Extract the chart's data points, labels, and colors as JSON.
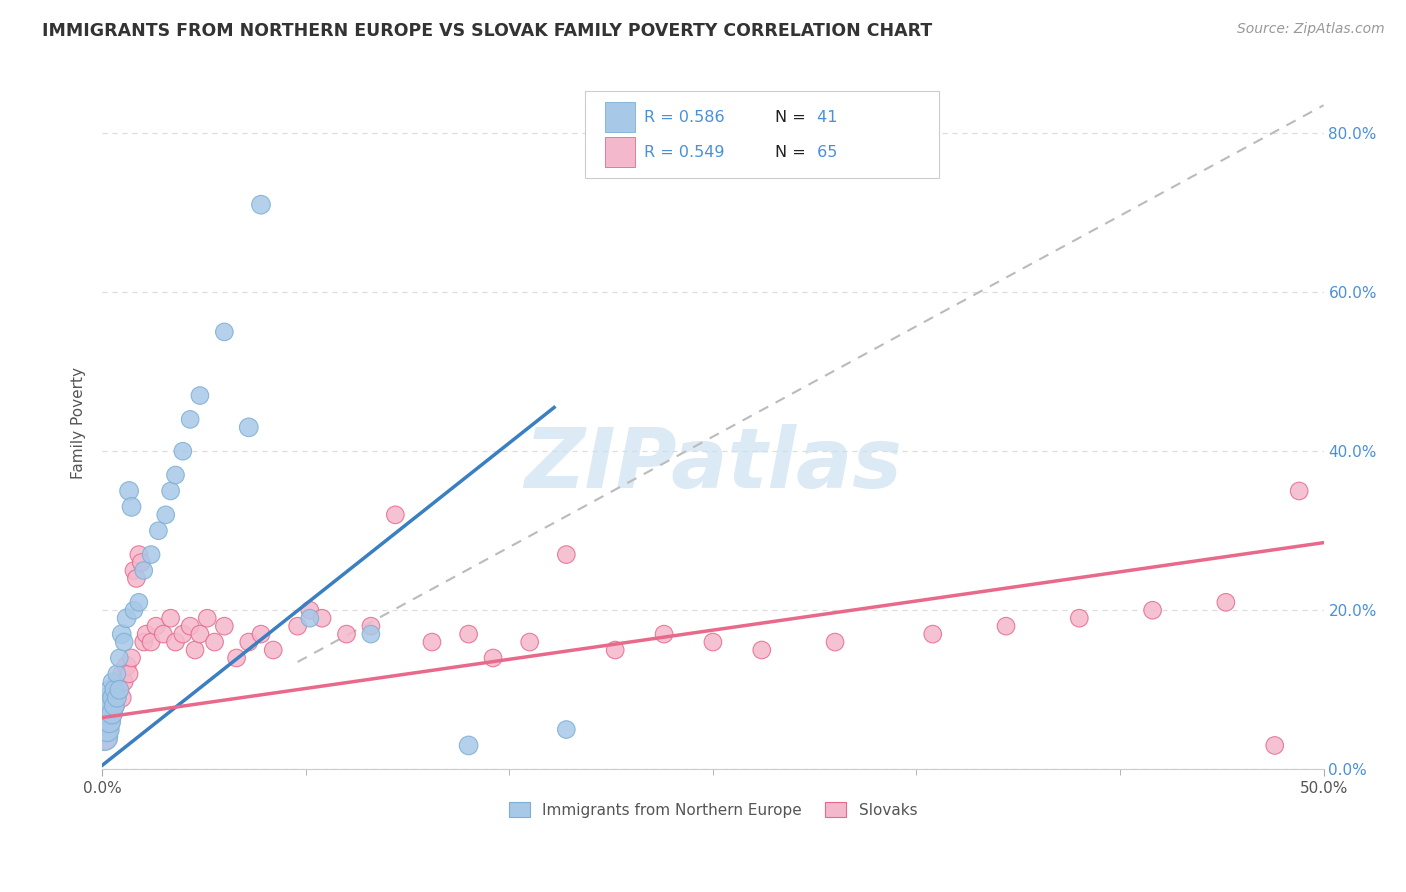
{
  "title": "IMMIGRANTS FROM NORTHERN EUROPE VS SLOVAK FAMILY POVERTY CORRELATION CHART",
  "source": "Source: ZipAtlas.com",
  "ylabel": "Family Poverty",
  "xlim": [
    0.0,
    0.5
  ],
  "ylim": [
    0.0,
    0.87
  ],
  "yticks": [
    0.0,
    0.2,
    0.4,
    0.6,
    0.8
  ],
  "ytick_labels_right": [
    "0.0%",
    "20.0%",
    "40.0%",
    "60.0%",
    "80.0%"
  ],
  "xtick_minor": [
    0.0,
    0.0833,
    0.1667,
    0.25,
    0.3333,
    0.4167,
    0.5
  ],
  "series1_color": "#a8c8e8",
  "series1_edge": "#7bafd4",
  "series2_color": "#f4b8cc",
  "series2_edge": "#e8698a",
  "series1_line_color": "#3a7fc1",
  "series2_line_color": "#e8698a",
  "series1_label": "Immigrants from Northern Europe",
  "series2_label": "Slovaks",
  "series1_R": "0.586",
  "series1_N": "41",
  "series2_R": "0.549",
  "series2_N": "65",
  "legend_text_color": "#4a90d9",
  "legend_n_color": "#222222",
  "watermark_text": "ZIPatlas",
  "watermark_color": "#c8dff0",
  "background_color": "#ffffff",
  "grid_color": "#dddddd",
  "diag_color": "#bbbbbb",
  "series1_line_x": [
    0.0,
    0.185
  ],
  "series1_line_y": [
    0.005,
    0.455
  ],
  "series2_line_x": [
    0.0,
    0.5
  ],
  "series2_line_y": [
    0.065,
    0.285
  ],
  "diag_line_x": [
    0.08,
    0.5
  ],
  "diag_line_y": [
    0.135,
    0.835
  ],
  "series1_x": [
    0.001,
    0.001,
    0.001,
    0.002,
    0.002,
    0.002,
    0.003,
    0.003,
    0.003,
    0.004,
    0.004,
    0.004,
    0.005,
    0.005,
    0.006,
    0.006,
    0.007,
    0.007,
    0.008,
    0.009,
    0.01,
    0.011,
    0.012,
    0.013,
    0.015,
    0.017,
    0.02,
    0.023,
    0.026,
    0.028,
    0.03,
    0.033,
    0.036,
    0.04,
    0.05,
    0.06,
    0.065,
    0.085,
    0.11,
    0.15,
    0.19
  ],
  "series1_y": [
    0.04,
    0.06,
    0.08,
    0.05,
    0.07,
    0.09,
    0.06,
    0.08,
    0.1,
    0.07,
    0.09,
    0.11,
    0.08,
    0.1,
    0.09,
    0.12,
    0.1,
    0.14,
    0.17,
    0.16,
    0.19,
    0.35,
    0.33,
    0.2,
    0.21,
    0.25,
    0.27,
    0.3,
    0.32,
    0.35,
    0.37,
    0.4,
    0.44,
    0.47,
    0.55,
    0.43,
    0.71,
    0.19,
    0.17,
    0.03,
    0.05
  ],
  "series1_sizes": [
    350,
    300,
    250,
    300,
    250,
    200,
    250,
    200,
    180,
    220,
    180,
    160,
    200,
    180,
    180,
    160,
    180,
    160,
    180,
    160,
    180,
    180,
    180,
    160,
    160,
    160,
    160,
    160,
    160,
    160,
    160,
    160,
    160,
    160,
    160,
    180,
    180,
    160,
    160,
    180,
    160
  ],
  "series2_x": [
    0.001,
    0.001,
    0.001,
    0.002,
    0.002,
    0.003,
    0.003,
    0.004,
    0.004,
    0.005,
    0.005,
    0.006,
    0.006,
    0.007,
    0.008,
    0.008,
    0.009,
    0.01,
    0.011,
    0.012,
    0.013,
    0.014,
    0.015,
    0.016,
    0.017,
    0.018,
    0.02,
    0.022,
    0.025,
    0.028,
    0.03,
    0.033,
    0.036,
    0.038,
    0.04,
    0.043,
    0.046,
    0.05,
    0.055,
    0.06,
    0.065,
    0.07,
    0.08,
    0.085,
    0.09,
    0.1,
    0.11,
    0.12,
    0.135,
    0.15,
    0.16,
    0.175,
    0.19,
    0.21,
    0.23,
    0.25,
    0.27,
    0.3,
    0.34,
    0.37,
    0.4,
    0.43,
    0.46,
    0.48,
    0.49
  ],
  "series2_y": [
    0.04,
    0.06,
    0.08,
    0.05,
    0.07,
    0.06,
    0.08,
    0.07,
    0.09,
    0.08,
    0.1,
    0.09,
    0.11,
    0.1,
    0.09,
    0.12,
    0.11,
    0.13,
    0.12,
    0.14,
    0.25,
    0.24,
    0.27,
    0.26,
    0.16,
    0.17,
    0.16,
    0.18,
    0.17,
    0.19,
    0.16,
    0.17,
    0.18,
    0.15,
    0.17,
    0.19,
    0.16,
    0.18,
    0.14,
    0.16,
    0.17,
    0.15,
    0.18,
    0.2,
    0.19,
    0.17,
    0.18,
    0.32,
    0.16,
    0.17,
    0.14,
    0.16,
    0.27,
    0.15,
    0.17,
    0.16,
    0.15,
    0.16,
    0.17,
    0.18,
    0.19,
    0.2,
    0.21,
    0.03,
    0.35
  ],
  "series2_sizes": [
    300,
    250,
    200,
    250,
    200,
    220,
    180,
    200,
    180,
    200,
    180,
    180,
    160,
    180,
    180,
    160,
    160,
    180,
    160,
    160,
    160,
    160,
    160,
    160,
    160,
    160,
    160,
    160,
    160,
    160,
    160,
    160,
    160,
    160,
    160,
    160,
    160,
    160,
    160,
    160,
    160,
    160,
    160,
    160,
    160,
    160,
    160,
    160,
    160,
    160,
    160,
    160,
    160,
    160,
    160,
    160,
    160,
    160,
    160,
    160,
    160,
    160,
    160,
    160,
    160
  ]
}
